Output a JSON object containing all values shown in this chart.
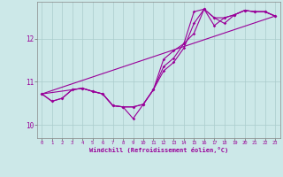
{
  "xlabel": "Windchill (Refroidissement éolien,°C)",
  "bg_color": "#cce8e8",
  "grid_color": "#aacccc",
  "line_color": "#990099",
  "xlim": [
    -0.5,
    23.5
  ],
  "ylim": [
    9.7,
    12.85
  ],
  "xticks": [
    0,
    1,
    2,
    3,
    4,
    5,
    6,
    7,
    8,
    9,
    10,
    11,
    12,
    13,
    14,
    15,
    16,
    17,
    18,
    19,
    20,
    21,
    22,
    23
  ],
  "yticks": [
    10,
    11,
    12
  ],
  "line1_x": [
    0,
    1,
    2,
    3,
    4,
    5,
    6,
    7,
    8,
    9,
    10,
    11,
    12,
    13,
    14,
    15,
    16,
    17,
    18,
    19,
    20,
    21,
    22,
    23
  ],
  "line1_y": [
    10.72,
    10.55,
    10.62,
    10.82,
    10.85,
    10.78,
    10.72,
    10.45,
    10.42,
    10.42,
    10.48,
    10.82,
    11.52,
    11.72,
    11.88,
    12.62,
    12.68,
    12.48,
    12.48,
    12.55,
    12.65,
    12.62,
    12.62,
    12.52
  ],
  "line2_x": [
    0,
    1,
    2,
    3,
    4,
    5,
    6,
    7,
    8,
    9,
    10,
    11,
    12,
    13,
    14,
    15,
    16,
    17,
    18,
    19,
    20,
    21,
    22,
    23
  ],
  "line2_y": [
    10.72,
    10.55,
    10.62,
    10.82,
    10.85,
    10.78,
    10.72,
    10.45,
    10.42,
    10.15,
    10.48,
    10.82,
    11.35,
    11.55,
    11.88,
    12.12,
    12.68,
    12.48,
    12.35,
    12.55,
    12.65,
    12.62,
    12.62,
    12.52
  ],
  "line3_x": [
    0,
    4,
    5,
    6,
    7,
    8,
    9,
    10,
    11,
    12,
    13,
    14,
    15,
    16,
    17,
    18,
    19,
    20,
    21,
    22,
    23
  ],
  "line3_y": [
    10.72,
    10.85,
    10.78,
    10.72,
    10.45,
    10.42,
    10.42,
    10.48,
    10.82,
    11.25,
    11.45,
    11.78,
    12.35,
    12.68,
    12.3,
    12.48,
    12.55,
    12.65,
    12.62,
    12.62,
    12.52
  ],
  "line4_x": [
    0,
    23
  ],
  "line4_y": [
    10.72,
    12.52
  ]
}
